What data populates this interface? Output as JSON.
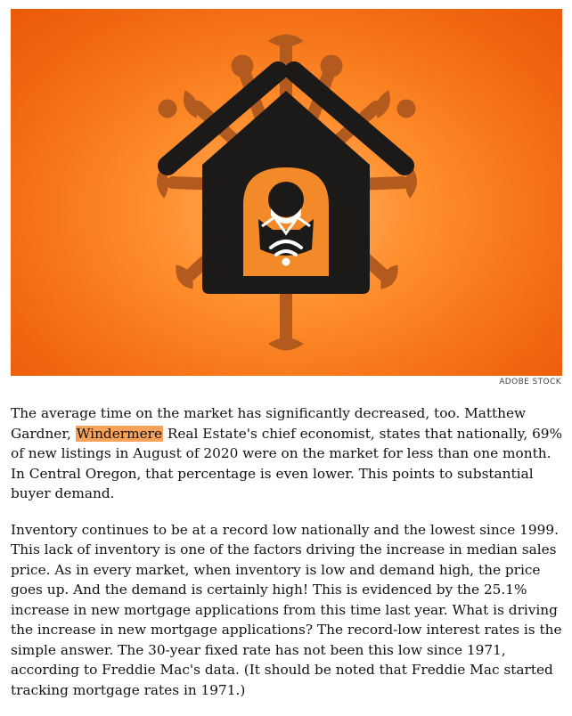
{
  "image": {
    "alt_icon": "house-with-masked-person-on-virus-illustration",
    "credit": "ADOBE STOCK",
    "colors": {
      "background": "#f47a1d",
      "house": "#1c1a19",
      "virus": "#b35a1f",
      "door": "#f28a2a"
    }
  },
  "article": {
    "p1_before": "The average time on the market has significantly decreased, too. Matthew Gardner, ",
    "p1_highlight": "Windermere",
    "p1_after": " Real Estate's chief economist, states that nationally, 69% of new listings in August of 2020 were on the market for less than one month. In Central Oregon, that percentage is even lower. This points to substantial buyer demand.",
    "p2": "Inventory continues to be at a record low nationally and the lowest since 1999. This lack of inventory is one of the factors driving the increase in median sales price. As in every market, when inventory is low and demand high, the price goes up. And the demand is certainly high! This is evidenced by the 25.1% increase in new mortgage applications from this time last year. What is driving the increase in new mortgage applications? The record-low interest rates is the simple answer. The 30-year fixed rate has not been this low since 1971, according to Freddie Mac's data. (It should be noted that Freddie Mac started tracking mortgage rates in 1971.)"
  }
}
